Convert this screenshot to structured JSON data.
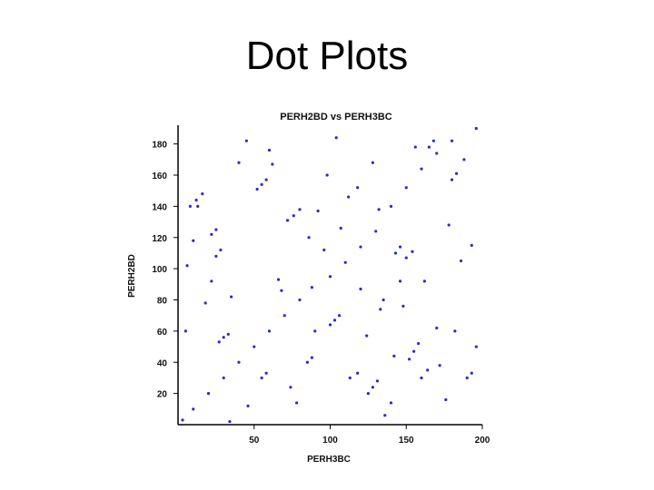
{
  "slide": {
    "title": "Dot Plots"
  },
  "chart_data": {
    "type": "scatter",
    "title": "PERH2BD vs PERH3BC",
    "xlabel": "PERH3BC",
    "ylabel": "PERH2BD",
    "xlim": [
      0,
      200
    ],
    "ylim": [
      0,
      192
    ],
    "xticks": [
      50,
      100,
      150,
      200
    ],
    "yticks": [
      20,
      40,
      60,
      80,
      100,
      120,
      140,
      160,
      180
    ],
    "grid": false,
    "legend": "none",
    "colors": {
      "dots": "#2a2ad8",
      "axis": "#000000"
    },
    "series": [
      {
        "values": [
          {
            "x": 3,
            "y": 3
          },
          {
            "x": 10,
            "y": 10
          },
          {
            "x": 20,
            "y": 20
          },
          {
            "x": 30,
            "y": 30
          },
          {
            "x": 40,
            "y": 40
          },
          {
            "x": 50,
            "y": 50
          },
          {
            "x": 60,
            "y": 60
          },
          {
            "x": 70,
            "y": 70
          },
          {
            "x": 80,
            "y": 80
          },
          {
            "x": 88,
            "y": 88
          },
          {
            "x": 100,
            "y": 95
          },
          {
            "x": 110,
            "y": 104
          },
          {
            "x": 120,
            "y": 114
          },
          {
            "x": 130,
            "y": 124
          },
          {
            "x": 140,
            "y": 140
          },
          {
            "x": 150,
            "y": 152
          },
          {
            "x": 160,
            "y": 164
          },
          {
            "x": 170,
            "y": 174
          },
          {
            "x": 180,
            "y": 182
          },
          {
            "x": 196,
            "y": 190
          },
          {
            "x": 8,
            "y": 140
          },
          {
            "x": 12,
            "y": 144
          },
          {
            "x": 16,
            "y": 148
          },
          {
            "x": 22,
            "y": 122
          },
          {
            "x": 25,
            "y": 125
          },
          {
            "x": 25,
            "y": 108
          },
          {
            "x": 28,
            "y": 112
          },
          {
            "x": 27,
            "y": 53
          },
          {
            "x": 30,
            "y": 56
          },
          {
            "x": 33,
            "y": 58
          },
          {
            "x": 35,
            "y": 82
          },
          {
            "x": 52,
            "y": 151
          },
          {
            "x": 55,
            "y": 154
          },
          {
            "x": 58,
            "y": 157
          },
          {
            "x": 55,
            "y": 30
          },
          {
            "x": 58,
            "y": 33
          },
          {
            "x": 72,
            "y": 131
          },
          {
            "x": 76,
            "y": 134
          },
          {
            "x": 80,
            "y": 138
          },
          {
            "x": 85,
            "y": 40
          },
          {
            "x": 88,
            "y": 43
          },
          {
            "x": 92,
            "y": 137
          },
          {
            "x": 100,
            "y": 64
          },
          {
            "x": 103,
            "y": 67
          },
          {
            "x": 106,
            "y": 70
          },
          {
            "x": 107,
            "y": 126
          },
          {
            "x": 113,
            "y": 30
          },
          {
            "x": 118,
            "y": 33
          },
          {
            "x": 120,
            "y": 87
          },
          {
            "x": 125,
            "y": 20
          },
          {
            "x": 128,
            "y": 24
          },
          {
            "x": 131,
            "y": 28
          },
          {
            "x": 133,
            "y": 74
          },
          {
            "x": 135,
            "y": 80
          },
          {
            "x": 143,
            "y": 110
          },
          {
            "x": 146,
            "y": 114
          },
          {
            "x": 150,
            "y": 107
          },
          {
            "x": 154,
            "y": 111
          },
          {
            "x": 152,
            "y": 42
          },
          {
            "x": 155,
            "y": 47
          },
          {
            "x": 158,
            "y": 52
          },
          {
            "x": 160,
            "y": 30
          },
          {
            "x": 164,
            "y": 35
          },
          {
            "x": 165,
            "y": 178
          },
          {
            "x": 168,
            "y": 182
          },
          {
            "x": 180,
            "y": 157
          },
          {
            "x": 183,
            "y": 161
          },
          {
            "x": 182,
            "y": 60
          },
          {
            "x": 190,
            "y": 30
          },
          {
            "x": 193,
            "y": 33
          },
          {
            "x": 193,
            "y": 115
          },
          {
            "x": 13,
            "y": 140
          },
          {
            "x": 18,
            "y": 78
          },
          {
            "x": 22,
            "y": 92
          },
          {
            "x": 40,
            "y": 168
          },
          {
            "x": 45,
            "y": 182
          },
          {
            "x": 60,
            "y": 176
          },
          {
            "x": 62,
            "y": 167
          },
          {
            "x": 66,
            "y": 93
          },
          {
            "x": 68,
            "y": 86
          },
          {
            "x": 74,
            "y": 24
          },
          {
            "x": 78,
            "y": 14
          },
          {
            "x": 96,
            "y": 112
          },
          {
            "x": 98,
            "y": 160
          },
          {
            "x": 112,
            "y": 146
          },
          {
            "x": 118,
            "y": 152
          },
          {
            "x": 124,
            "y": 57
          },
          {
            "x": 128,
            "y": 168
          },
          {
            "x": 136,
            "y": 6
          },
          {
            "x": 140,
            "y": 14
          },
          {
            "x": 142,
            "y": 44
          },
          {
            "x": 146,
            "y": 92
          },
          {
            "x": 156,
            "y": 178
          },
          {
            "x": 162,
            "y": 92
          },
          {
            "x": 170,
            "y": 62
          },
          {
            "x": 172,
            "y": 38
          },
          {
            "x": 176,
            "y": 16
          },
          {
            "x": 186,
            "y": 105
          },
          {
            "x": 188,
            "y": 170
          },
          {
            "x": 6,
            "y": 102
          },
          {
            "x": 10,
            "y": 118
          },
          {
            "x": 34,
            "y": 2
          },
          {
            "x": 46,
            "y": 12
          },
          {
            "x": 86,
            "y": 120
          },
          {
            "x": 90,
            "y": 60
          },
          {
            "x": 104,
            "y": 184
          },
          {
            "x": 132,
            "y": 138
          },
          {
            "x": 148,
            "y": 76
          },
          {
            "x": 178,
            "y": 128
          },
          {
            "x": 196,
            "y": 50
          },
          {
            "x": 5,
            "y": 60
          }
        ]
      }
    ]
  }
}
